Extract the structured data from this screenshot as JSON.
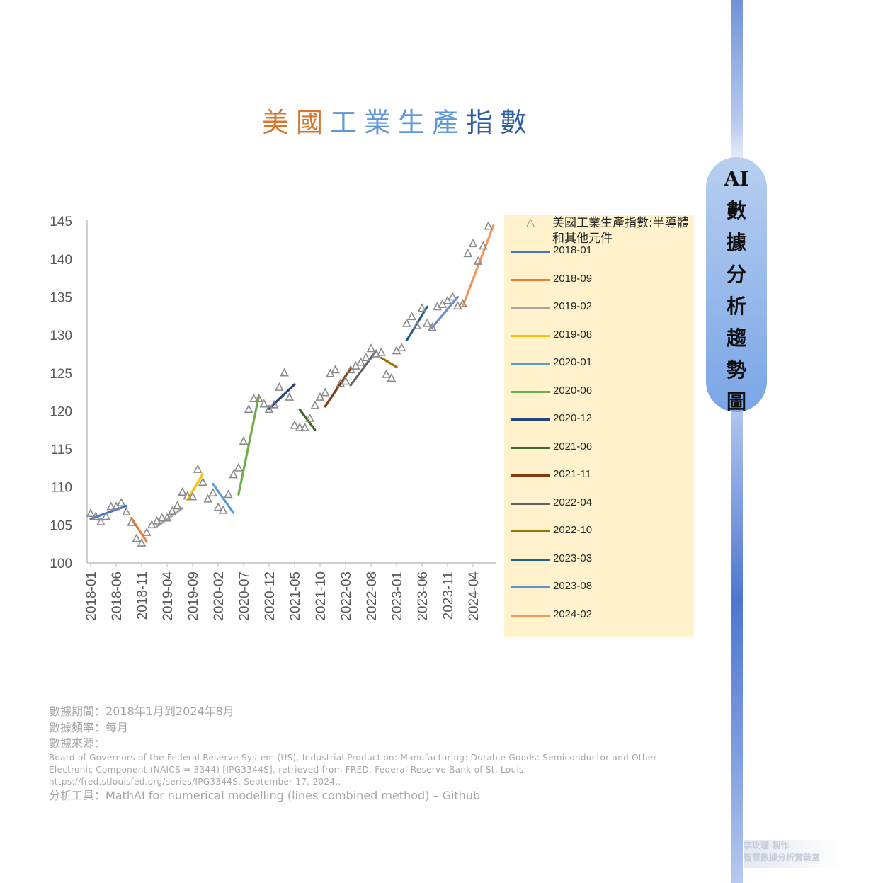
{
  "title": {
    "part1": "美國",
    "part2": "工業生產",
    "part3": "指數"
  },
  "side_label": [
    "AI",
    "數",
    "據",
    "分",
    "析",
    "趨",
    "勢",
    "圖"
  ],
  "chart_data": {
    "type": "line",
    "ylim": [
      100,
      145
    ],
    "yticks": [
      100,
      105,
      110,
      115,
      120,
      125,
      130,
      135,
      140,
      145
    ],
    "x_tick_labels": [
      "2018-01",
      "2018-06",
      "2018-11",
      "2019-04",
      "2019-09",
      "2020-02",
      "2020-07",
      "2020-12",
      "2021-05",
      "2021-10",
      "2022-03",
      "2022-08",
      "2023-01",
      "2023-06",
      "2023-11",
      "2024-04"
    ],
    "x_start": "2018-01",
    "x_end": "2024-08",
    "scatter_series": {
      "name": "美國工業生產指數:半導體和其他元件",
      "marker": "triangle",
      "values": [
        106.5,
        106.1,
        105.4,
        106.1,
        107.4,
        107.4,
        107.9,
        106.7,
        105.3,
        103.2,
        102.6,
        104.0,
        105.0,
        105.5,
        105.9,
        105.9,
        106.8,
        107.5,
        109.3,
        108.8,
        108.7,
        112.3,
        110.6,
        108.4,
        109.2,
        107.3,
        106.9,
        109.0,
        111.6,
        112.5,
        116.0,
        120.2,
        121.6,
        121.6,
        120.9,
        120.2,
        120.8,
        123.1,
        125.0,
        121.8,
        118.1,
        117.8,
        117.8,
        119.0,
        120.7,
        121.8,
        122.4,
        124.9,
        125.4,
        123.6,
        123.9,
        125.4,
        125.9,
        126.4,
        127.0,
        128.2,
        127.5,
        127.7,
        124.8,
        124.3,
        127.9,
        128.3,
        131.5,
        132.4,
        131.2,
        133.5,
        131.5,
        131.0,
        133.7,
        134.0,
        134.5,
        135.0,
        133.8,
        134.1,
        140.7,
        142.0,
        139.7,
        141.7,
        144.3
      ]
    },
    "trend_segments": [
      {
        "name": "2018-01",
        "color": "#4472c4",
        "x": [
          "2018-01",
          "2018-08"
        ],
        "y": [
          105.8,
          107.5
        ]
      },
      {
        "name": "2018-09",
        "color": "#ed7d31",
        "x": [
          "2018-09",
          "2018-12"
        ],
        "y": [
          105.9,
          102.8
        ]
      },
      {
        "name": "2019-02",
        "color": "#a5a5a5",
        "x": [
          "2019-02",
          "2019-07"
        ],
        "y": [
          104.8,
          107.2
        ]
      },
      {
        "name": "2019-08",
        "color": "#ffc000",
        "x": [
          "2019-08",
          "2019-11"
        ],
        "y": [
          108.3,
          111.7
        ]
      },
      {
        "name": "2020-01",
        "color": "#5b9bd5",
        "x": [
          "2020-01",
          "2020-05"
        ],
        "y": [
          110.4,
          106.6
        ]
      },
      {
        "name": "2020-06",
        "color": "#70ad47",
        "x": [
          "2020-06",
          "2020-10"
        ],
        "y": [
          109.0,
          122.0
        ]
      },
      {
        "name": "2020-12",
        "color": "#264478",
        "x": [
          "2020-12",
          "2021-05"
        ],
        "y": [
          120.3,
          123.5
        ]
      },
      {
        "name": "2021-06",
        "color": "#43682b",
        "x": [
          "2021-06",
          "2021-09"
        ],
        "y": [
          120.2,
          117.5
        ]
      },
      {
        "name": "2021-11",
        "color": "#843c0c",
        "x": [
          "2021-11",
          "2022-04"
        ],
        "y": [
          120.6,
          125.6
        ]
      },
      {
        "name": "2022-04",
        "color": "#636363",
        "x": [
          "2022-04",
          "2022-09"
        ],
        "y": [
          123.4,
          127.9
        ]
      },
      {
        "name": "2022-10",
        "color": "#997300",
        "x": [
          "2022-10",
          "2023-01"
        ],
        "y": [
          127.0,
          125.8
        ]
      },
      {
        "name": "2023-03",
        "color": "#255e91",
        "x": [
          "2023-03",
          "2023-07"
        ],
        "y": [
          129.3,
          133.7
        ]
      },
      {
        "name": "2023-08",
        "color": "#698ed0",
        "x": [
          "2023-08",
          "2024-01"
        ],
        "y": [
          131.0,
          135.0
        ]
      },
      {
        "name": "2024-02",
        "color": "#f1975a",
        "x": [
          "2024-02",
          "2024-08"
        ],
        "y": [
          133.8,
          144.4
        ]
      }
    ]
  },
  "legend": {
    "scatter_label": "美國工業生產指數:半導體和其他元件",
    "items": [
      "2018-01",
      "2018-09",
      "2019-02",
      "2019-08",
      "2020-01",
      "2020-06",
      "2020-12",
      "2021-06",
      "2021-11",
      "2022-04",
      "2022-10",
      "2023-03",
      "2023-08",
      "2024-02"
    ]
  },
  "notes": {
    "period": "數據期間：2018年1月到2024年8月",
    "frequency": "數據頻率：每月",
    "source_label": "數據來源：",
    "source_text": "Board of Governors of the Federal Reserve System (US), Industrial Production: Manufacturing: Durable Goods: Semiconductor and Other Electronic Component (NAICS = 3344) [IPG3344S], retrieved from FRED, Federal Reserve Bank of St. Louis; https://fred.stlouisfed.org/series/IPG3344S, September 17, 2024..",
    "tool": "分析工具：MathAI for numerical modelling (lines combined method) – Github"
  },
  "credit": {
    "line1": "李玫瑾 製作",
    "line2": "智慧數據分析實驗室"
  }
}
